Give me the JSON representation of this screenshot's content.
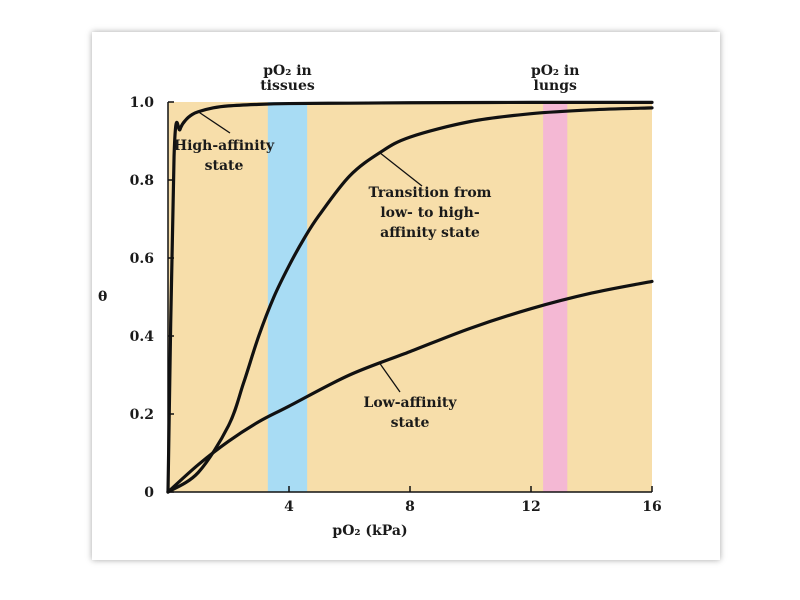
{
  "chart_data": {
    "type": "line",
    "xlabel": "pO₂ (kPa)",
    "ylabel": "θ",
    "xlim": [
      0,
      16
    ],
    "ylim": [
      0,
      1.0
    ],
    "x_ticks": [
      4,
      8,
      12,
      16
    ],
    "x_tick_labels": [
      "4",
      "8",
      "12",
      "16"
    ],
    "y_ticks": [
      0,
      0.2,
      0.4,
      0.6,
      0.8,
      1.0
    ],
    "y_tick_labels": [
      "0",
      "0.2",
      "0.4",
      "0.6",
      "0.8",
      "1.0"
    ],
    "grid": false,
    "background_color": "#f7deaa",
    "bands": [
      {
        "label_line1": "pO₂ in",
        "label_line2": "tissues",
        "x_start": 3.3,
        "x_end": 4.6,
        "color": "#a8dcf4"
      },
      {
        "label_line1": "pO₂ in",
        "label_line2": "lungs",
        "x_start": 12.4,
        "x_end": 13.2,
        "color": "#f4b8d4"
      }
    ],
    "series": [
      {
        "x": [
          0.0,
          0.2,
          0.4,
          0.6,
          0.8,
          1.0,
          1.5,
          2.0,
          3.0,
          4.0,
          6.0,
          8.0,
          12.0,
          16.0
        ],
        "values": [
          0.0,
          0.86,
          0.93,
          0.955,
          0.968,
          0.975,
          0.985,
          0.99,
          0.994,
          0.996,
          0.997,
          0.998,
          0.999,
          0.999
        ]
      },
      {
        "x": [
          0.0,
          1.0,
          2.0,
          2.5,
          3.0,
          3.5,
          4.0,
          4.5,
          5.0,
          6.0,
          7.0,
          8.0,
          10.0,
          12.0,
          14.0,
          16.0
        ],
        "values": [
          0.0,
          0.05,
          0.17,
          0.28,
          0.4,
          0.5,
          0.58,
          0.65,
          0.71,
          0.81,
          0.87,
          0.91,
          0.95,
          0.97,
          0.98,
          0.985
        ]
      },
      {
        "x": [
          0.0,
          1.0,
          2.0,
          3.0,
          4.0,
          6.0,
          8.0,
          10.0,
          12.0,
          14.0,
          16.0
        ],
        "values": [
          0.0,
          0.07,
          0.13,
          0.18,
          0.22,
          0.3,
          0.36,
          0.42,
          0.47,
          0.51,
          0.54
        ]
      }
    ],
    "annotations": [
      {
        "lines": [
          "High-affinity",
          "state"
        ],
        "series_index": 0,
        "arrow_x": 1.0,
        "arrow_y": 0.975
      },
      {
        "lines": [
          "Transition from",
          "low- to high-",
          "affinity state"
        ],
        "series_index": 1,
        "arrow_x": 7.0,
        "arrow_y": 0.87
      },
      {
        "lines": [
          "Low-affinity",
          "state"
        ],
        "series_index": 2,
        "arrow_x": 7.0,
        "arrow_y": 0.33
      }
    ]
  }
}
